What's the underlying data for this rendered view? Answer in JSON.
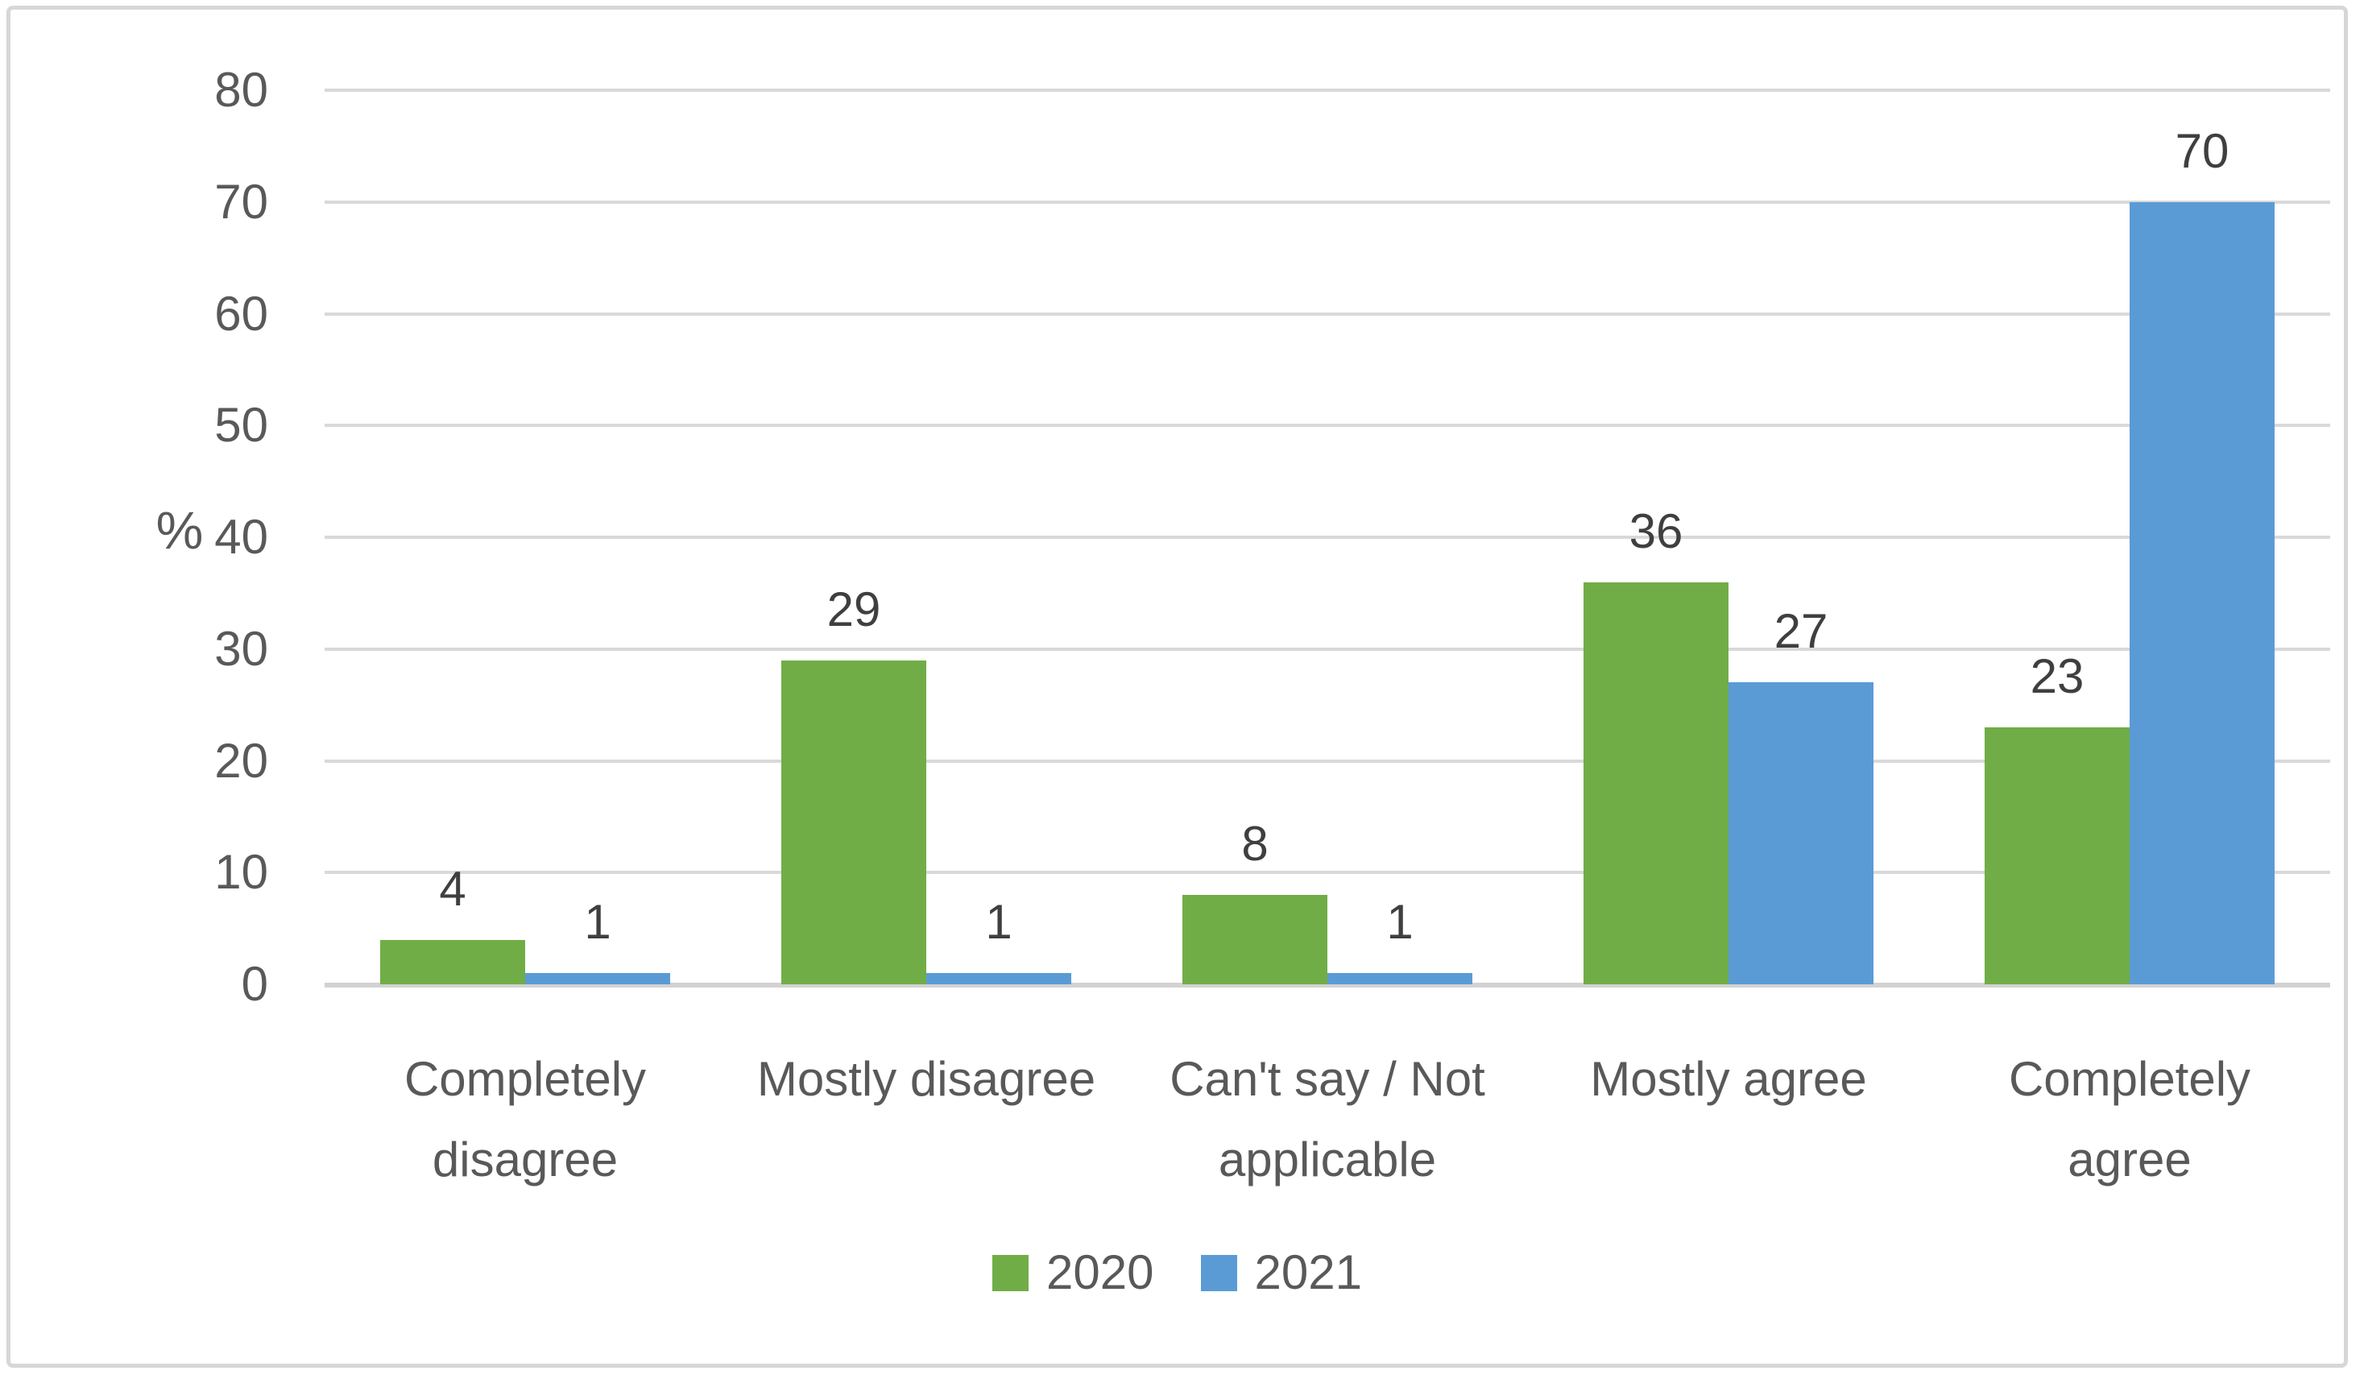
{
  "chart_data": {
    "type": "bar",
    "categories": [
      "Completely\ndisagree",
      "Mostly disagree",
      "Can't say / Not\napplicable",
      "Mostly agree",
      "Completely\nagree"
    ],
    "series": [
      {
        "name": "2020",
        "color": "#70AD47",
        "values": [
          4,
          29,
          8,
          36,
          23
        ]
      },
      {
        "name": "2021",
        "color": "#5B9BD5",
        "values": [
          1,
          1,
          1,
          27,
          70
        ]
      }
    ],
    "title": "",
    "xlabel": "",
    "ylabel": "%",
    "ylim": [
      0,
      80
    ],
    "yticks": [
      0,
      10,
      20,
      30,
      40,
      50,
      60,
      70,
      80
    ],
    "grid": true,
    "gridline_color": "#D9D9D9",
    "data_labels": true,
    "legend_position": "bottom",
    "legend": [
      "2020",
      "2021"
    ],
    "axis_text_color": "#595959",
    "data_label_color": "#3F3F3F",
    "border_color": "#D7D7D7"
  }
}
